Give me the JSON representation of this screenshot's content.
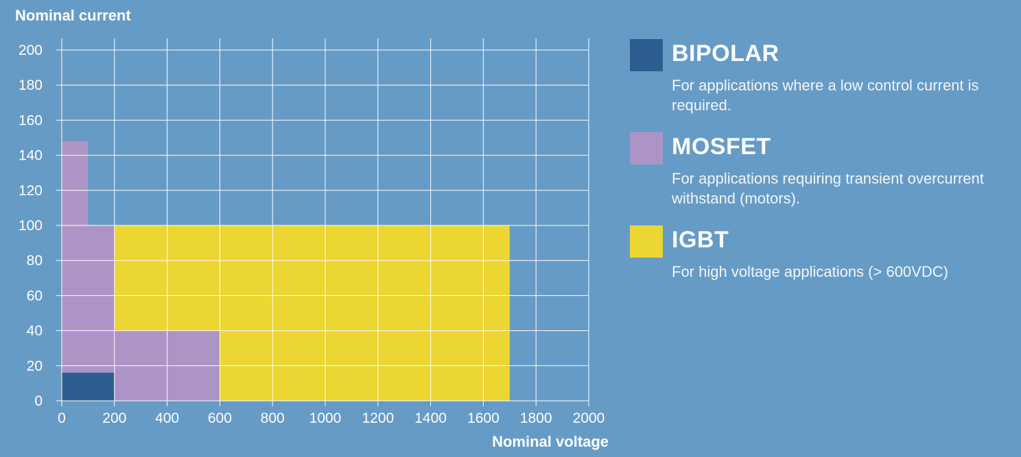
{
  "chart_data": {
    "type": "area",
    "xlabel": "Nominal voltage",
    "ylabel": "Nominal current",
    "xlim": [
      0,
      2000
    ],
    "ylim": [
      0,
      200
    ],
    "x_ticks": [
      0,
      200,
      400,
      600,
      800,
      1000,
      1200,
      1400,
      1600,
      1800,
      2000
    ],
    "y_ticks": [
      0,
      20,
      40,
      60,
      80,
      100,
      120,
      140,
      160,
      180,
      200
    ],
    "x_gridlines": [
      0,
      200,
      400,
      600,
      800,
      1000,
      1200,
      1400,
      1600,
      1800,
      2000
    ],
    "y_gridlines": [
      0,
      20,
      40,
      60,
      80,
      100,
      120,
      140,
      160,
      180,
      200
    ],
    "grid": true,
    "legend_position": "right",
    "series": [
      {
        "name": "IGBT",
        "color": "#ecd631",
        "polygon": [
          [
            200,
            0
          ],
          [
            1700,
            0
          ],
          [
            1700,
            100
          ],
          [
            200,
            100
          ]
        ]
      },
      {
        "name": "MOSFET",
        "color": "#ad94c6",
        "polygon": [
          [
            0,
            0
          ],
          [
            600,
            0
          ],
          [
            600,
            40
          ],
          [
            200,
            40
          ],
          [
            200,
            100
          ],
          [
            100,
            100
          ],
          [
            100,
            148
          ],
          [
            0,
            148
          ]
        ]
      },
      {
        "name": "BIPOLAR",
        "color": "#2e5d8f",
        "polygon": [
          [
            0,
            0
          ],
          [
            200,
            0
          ],
          [
            200,
            16
          ],
          [
            0,
            16
          ]
        ]
      }
    ]
  },
  "legend": [
    {
      "name": "BIPOLAR",
      "description": "For applications where a low control current is required.",
      "color": "#2e5d8f"
    },
    {
      "name": "MOSFET",
      "description": "For applications requiring transient overcurrent withstand (motors).",
      "color": "#ad94c6"
    },
    {
      "name": "IGBT",
      "description": "For high voltage applications (> 600VDC)",
      "color": "#ecd631"
    }
  ]
}
